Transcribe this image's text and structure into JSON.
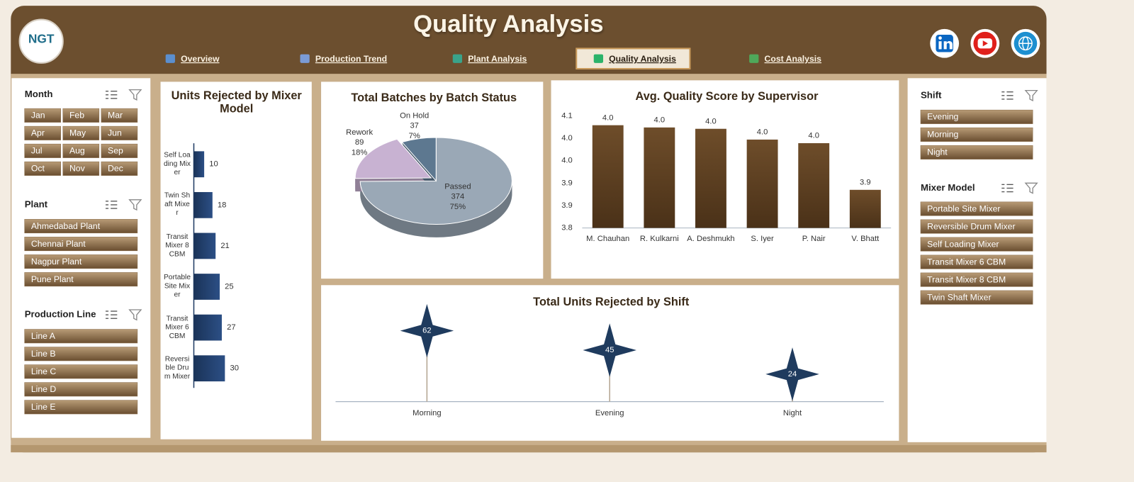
{
  "header": {
    "title": "Quality Analysis",
    "logo": "NGT"
  },
  "nav": [
    "Overview",
    "Production Trend",
    "Plant Analysis",
    "Quality Analysis",
    "Cost Analysis"
  ],
  "active_nav": 3,
  "slicers": [
    {
      "title": "Month",
      "items": [
        "Jan",
        "Feb",
        "Mar",
        "Apr",
        "May",
        "Jun",
        "Jul",
        "Aug",
        "Sep",
        "Oct",
        "Nov",
        "Dec"
      ]
    },
    {
      "title": "Plant",
      "items": [
        "Ahmedabad Plant",
        "Chennai Plant",
        "Nagpur Plant",
        "Pune Plant"
      ]
    },
    {
      "title": "Production Line",
      "items": [
        "Line A",
        "Line B",
        "Line C",
        "Line D",
        "Line E"
      ]
    },
    {
      "title": "Shift",
      "items": [
        "Evening",
        "Morning",
        "Night"
      ]
    },
    {
      "title": "Mixer Model",
      "items": [
        "Portable Site Mixer",
        "Reversible Drum Mixer",
        "Self Loading Mixer",
        "Transit Mixer 6 CBM",
        "Transit Mixer 8 CBM",
        "Twin Shaft Mixer"
      ]
    }
  ],
  "chart_data": [
    {
      "type": "hbar",
      "title": "Units Rejected by Mixer Model",
      "categories": [
        "Self Loading Mixer",
        "Twin Shaft Mixer",
        "Transit Mixer 8 CBM",
        "Portable Site Mixer",
        "Transit Mixer 6 CBM",
        "Reversible Drum Mixer"
      ],
      "values": [
        10,
        18,
        21,
        25,
        27,
        30
      ],
      "color": "#1f3b64"
    },
    {
      "type": "pie",
      "title": "Total Batches by Batch Status",
      "categories": [
        "Passed",
        "Rework",
        "On Hold"
      ],
      "values": [
        374,
        89,
        37
      ],
      "percent_labels": [
        "75%",
        "18%",
        "7%"
      ],
      "colors": [
        "#9aa8b6",
        "#c8b2d2",
        "#5d7890"
      ]
    },
    {
      "type": "bar",
      "title": "Avg. Quality Score by Supervisor",
      "categories": [
        "M. Chauhan",
        "R. Kulkarni",
        "A. Deshmukh",
        "S. Iyer",
        "P. Nair",
        "V. Bhatt"
      ],
      "values": [
        4.029,
        4.024,
        4.021,
        3.997,
        3.989,
        3.885
      ],
      "value_labels": [
        "4.0",
        "4.0",
        "4.0",
        "4.0",
        "4.0",
        "3.9"
      ],
      "ylim": [
        3.8,
        4.05
      ],
      "yticks": [
        3.8,
        {
          "value": 3.85,
          "label": "3.9"
        },
        3.9,
        {
          "value": 3.95,
          "label": "4.0"
        },
        {
          "value": 4,
          "label": "4.0"
        },
        {
          "value": 4.05,
          "label": "4.1"
        }
      ],
      "color": "#5a3d1f",
      "grid": false
    },
    {
      "type": "lollipop",
      "title": "Total Units Rejected by Shift",
      "categories": [
        "Morning",
        "Evening",
        "Night"
      ],
      "values": [
        62,
        45,
        24
      ],
      "color": "#1f3b5e"
    }
  ]
}
